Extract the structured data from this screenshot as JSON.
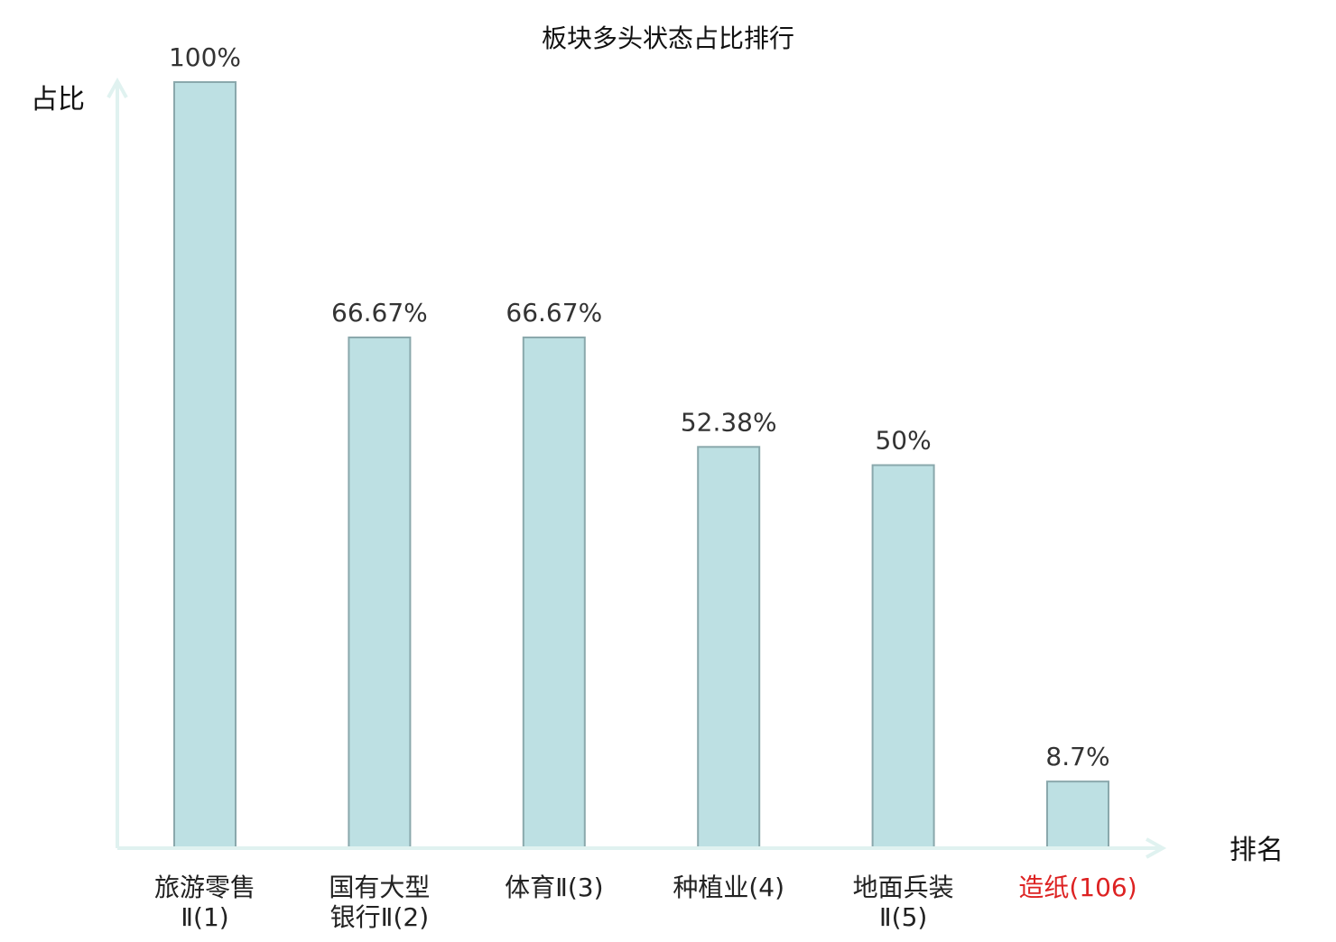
{
  "chart_data": {
    "type": "bar",
    "title": "板块多头状态占比排行",
    "ylabel": "占比",
    "xlabel": "排名",
    "ylim": [
      0,
      100
    ],
    "grid": false,
    "legend": "none",
    "categories": [
      {
        "lines": [
          "旅游零售",
          "Ⅱ(1)"
        ]
      },
      {
        "lines": [
          "国有大型",
          "银行Ⅱ(2)"
        ]
      },
      {
        "lines": [
          "体育Ⅱ(3)"
        ]
      },
      {
        "lines": [
          "种植业(4)"
        ]
      },
      {
        "lines": [
          "地面兵装",
          "Ⅱ(5)"
        ]
      },
      {
        "lines": [
          "造纸(106)"
        ],
        "highlight": true
      }
    ],
    "values": [
      100,
      66.67,
      66.67,
      52.38,
      50,
      8.7
    ],
    "value_labels": [
      "100%",
      "66.67%",
      "66.67%",
      "52.38%",
      "50%",
      "8.7%"
    ]
  },
  "colors": {
    "bar_fill": "#bde0e3",
    "bar_stroke": "#8aa8ac",
    "axis": "#e0f2f0",
    "text": "#222222",
    "value_text": "#333333",
    "highlight": "#dd2222"
  }
}
